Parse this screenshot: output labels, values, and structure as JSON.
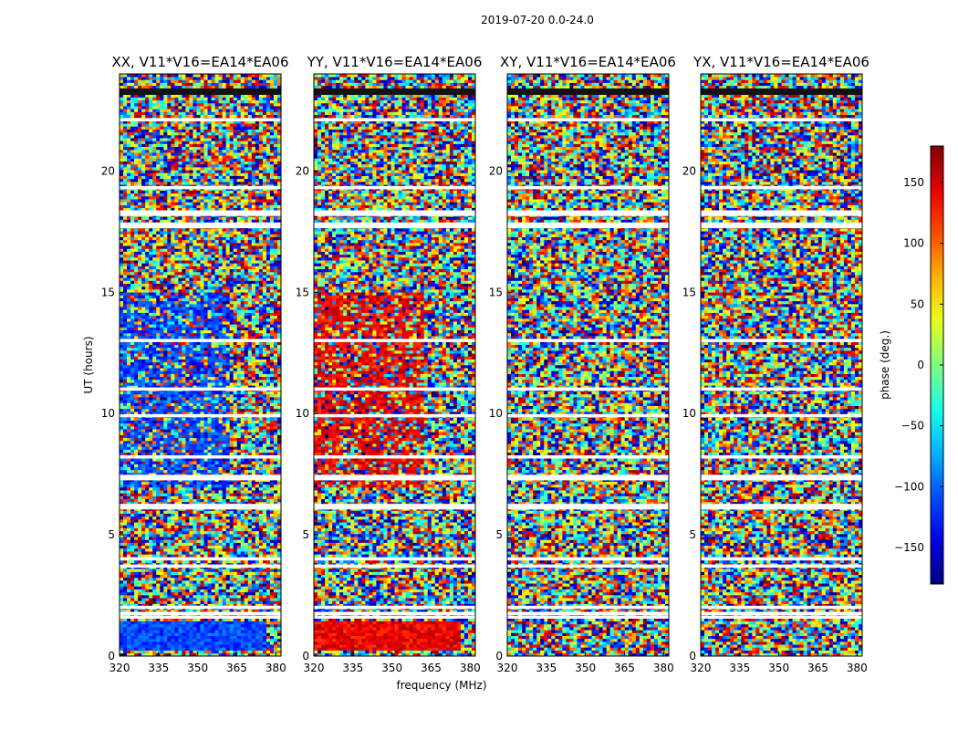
{
  "chart_data": {
    "type": "heatmap",
    "suptitle": "2019-07-20 0.0-24.0",
    "xlabel": "frequency (MHz)",
    "ylabel": "UT (hours)",
    "xlim": [
      320,
      382
    ],
    "ylim": [
      0,
      24
    ],
    "xticks": [
      "320",
      "335",
      "350",
      "365",
      "380"
    ],
    "yticks": [
      "0",
      "5",
      "10",
      "15",
      "20"
    ],
    "panels": [
      {
        "title": "XX, V11*V16=EA14*EA06",
        "polarization": "XX",
        "coherent_bias": -110,
        "band_end_mhz": 362
      },
      {
        "title": "YY, V11*V16=EA14*EA06",
        "polarization": "YY",
        "coherent_bias": 140,
        "band_end_mhz": 362
      },
      {
        "title": "XY, V11*V16=EA14*EA06",
        "polarization": "XY",
        "coherent_bias": null,
        "band_end_mhz": null
      },
      {
        "title": "YX, V11*V16=EA14*EA06",
        "polarization": "YX",
        "coherent_bias": null,
        "band_end_mhz": null
      }
    ],
    "colorbar": {
      "label": "phase (deg.)",
      "range": [
        -180,
        180
      ],
      "ticks": [
        "−150",
        "−100",
        "−50",
        "0",
        "50",
        "100",
        "150"
      ],
      "cmap": "jet"
    },
    "flagged_ut_hours": [
      1.6,
      1.75,
      2.0,
      3.7,
      4.0,
      6.1,
      6.2,
      7.3,
      7.4,
      8.2,
      9.9,
      11.0,
      13.0,
      17.7,
      17.8,
      18.2,
      18.3,
      19.3,
      22.1
    ]
  }
}
